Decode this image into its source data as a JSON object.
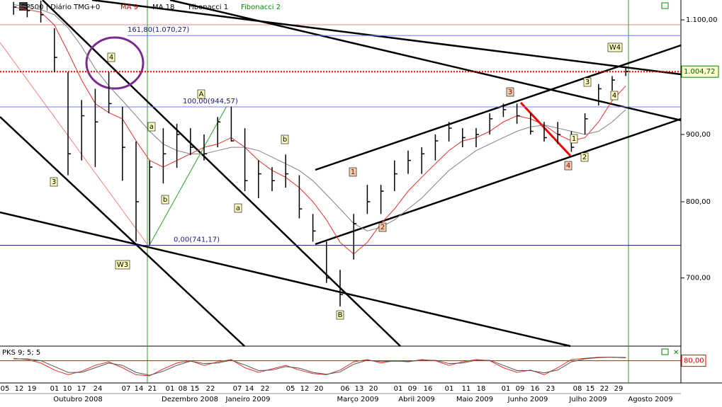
{
  "chart_data": {
    "type": "ohlc",
    "header": {
      "symbol": "SP500 | Diário TMG+0",
      "tools": [
        "Fibonacci 1",
        "Fibonacci 2"
      ]
    },
    "x": [
      0,
      1,
      2,
      3,
      4,
      5,
      6,
      7,
      8,
      9,
      10,
      11,
      12,
      13,
      14,
      15,
      16,
      17,
      18,
      19,
      20,
      21,
      22,
      23,
      24,
      25,
      26,
      27,
      28,
      29,
      30,
      31,
      32,
      33,
      34,
      35,
      36,
      37,
      38,
      39,
      40,
      41,
      42,
      43,
      44,
      45
    ],
    "high": [
      1135,
      1130,
      1138,
      1084,
      1004,
      956,
      975,
      1004,
      945,
      889,
      860,
      910,
      917,
      910,
      900,
      928,
      945,
      910,
      860,
      850,
      869,
      838,
      783,
      746,
      710,
      783,
      824,
      824,
      860,
      875,
      880,
      900,
      920,
      910,
      910,
      934,
      950,
      950,
      934,
      920,
      920,
      905,
      934,
      983,
      997,
      1014
    ],
    "low": [
      1110,
      1105,
      1095,
      1004,
      838,
      860,
      850,
      934,
      830,
      746,
      741,
      826,
      849,
      868,
      860,
      880,
      889,
      815,
      805,
      815,
      820,
      777,
      746,
      694,
      666,
      723,
      783,
      783,
      815,
      840,
      840,
      860,
      889,
      880,
      880,
      900,
      928,
      917,
      900,
      889,
      885,
      873,
      900,
      947,
      972,
      997
    ],
    "close": [
      1125,
      1118,
      1110,
      1030,
      870,
      930,
      920,
      950,
      880,
      800,
      850,
      870,
      900,
      880,
      870,
      920,
      890,
      830,
      840,
      830,
      840,
      790,
      760,
      700,
      680,
      770,
      800,
      815,
      840,
      860,
      870,
      890,
      910,
      895,
      900,
      925,
      940,
      930,
      905,
      895,
      900,
      880,
      925,
      975,
      990,
      1005
    ],
    "series": [
      {
        "name": "MA 9",
        "color": "#e0312b",
        "values": [
          1125,
          1120,
          1115,
          1090,
          1040,
          990,
          950,
          935,
          925,
          890,
          860,
          850,
          860,
          870,
          880,
          885,
          895,
          880,
          860,
          845,
          835,
          820,
          800,
          775,
          745,
          730,
          745,
          770,
          790,
          815,
          835,
          855,
          875,
          890,
          895,
          905,
          920,
          930,
          925,
          915,
          900,
          890,
          895,
          920,
          955,
          980
        ]
      },
      {
        "name": "MA 18",
        "color": "#808080",
        "values": [
          1130,
          1125,
          1120,
          1110,
          1085,
          1050,
          1010,
          980,
          955,
          930,
          905,
          885,
          875,
          870,
          870,
          875,
          880,
          880,
          875,
          865,
          855,
          845,
          830,
          810,
          790,
          770,
          760,
          765,
          775,
          790,
          805,
          825,
          845,
          860,
          875,
          885,
          895,
          905,
          912,
          915,
          910,
          905,
          900,
          905,
          920,
          940
        ]
      }
    ],
    "xlim": [
      -1,
      49
    ],
    "ylim": [
      622,
      1139
    ],
    "log_scale": true,
    "yticks": [
      {
        "value": 1100,
        "label": "1.100,00"
      },
      {
        "value": 900,
        "label": "900,00"
      },
      {
        "value": 800,
        "label": "800,00"
      },
      {
        "value": 700,
        "label": "700,00"
      }
    ],
    "last_price": {
      "value": 1004.72,
      "label": "1.004,72"
    },
    "fib_levels": [
      {
        "value": 1070.27,
        "label": "161,80(1.070,27)"
      },
      {
        "value": 944.57,
        "label": "100,00(944,57)"
      },
      {
        "value": 741.17,
        "label": "0,00(741,17)"
      }
    ],
    "annotations": [
      "4",
      "3",
      "W3",
      "a",
      "b",
      "A",
      "a",
      "b",
      "B",
      "1",
      "2",
      "3",
      "4",
      "3",
      "1",
      "2",
      "4",
      "W4"
    ],
    "oscillator": {
      "title": "PKS 9; 5; 5",
      "ylim": [
        0,
        100
      ],
      "level": {
        "value": 80,
        "label": "80,00"
      },
      "series": [
        {
          "color": "#e0312b",
          "values": [
            90,
            85,
            70,
            40,
            20,
            35,
            60,
            75,
            50,
            20,
            15,
            45,
            70,
            80,
            60,
            75,
            85,
            50,
            30,
            45,
            60,
            40,
            25,
            20,
            40,
            75,
            85,
            70,
            80,
            75,
            85,
            80,
            60,
            75,
            85,
            80,
            50,
            30,
            40,
            20,
            50,
            85,
            90,
            95,
            95,
            92
          ]
        },
        {
          "color": "#555555",
          "values": [
            88,
            88,
            80,
            55,
            30,
            30,
            50,
            70,
            60,
            30,
            18,
            35,
            60,
            78,
            68,
            70,
            82,
            62,
            38,
            40,
            55,
            48,
            30,
            22,
            32,
            65,
            82,
            76,
            78,
            77,
            82,
            82,
            68,
            70,
            82,
            82,
            60,
            38,
            38,
            28,
            40,
            75,
            88,
            93,
            95,
            94
          ]
        }
      ]
    },
    "day_labels": [
      "05",
      "12",
      "19",
      "01",
      "10",
      "17",
      "24",
      "07",
      "14",
      "21",
      "01",
      "08",
      "15",
      "22",
      "07",
      "14",
      "22",
      "05",
      "12",
      "20",
      "06",
      "13",
      "20",
      "01",
      "09",
      "16",
      "01",
      "11",
      "18",
      "01",
      "09",
      "16",
      "23",
      "08",
      "15",
      "22",
      "29"
    ],
    "month_labels": [
      "Outubro 2008",
      "Dezembro 2008",
      "Janeiro 2009",
      "Março 2009",
      "Abril 2009",
      "Maio 2009",
      "Junho 2009",
      "Julho 2009",
      "Agosto 2009"
    ]
  }
}
